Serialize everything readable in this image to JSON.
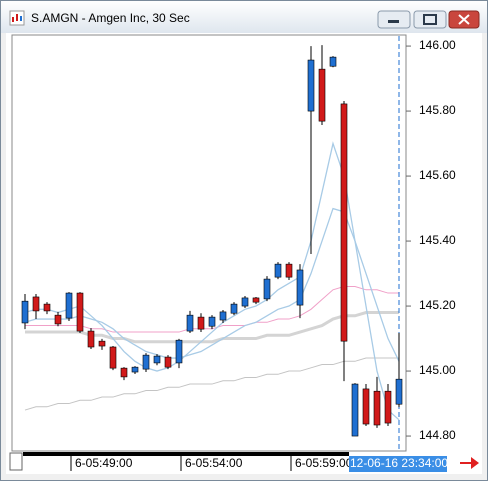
{
  "window": {
    "title": "S.AMGN - Amgen Inc, 30 Sec"
  },
  "chart_data": {
    "type": "candlestick",
    "categories": [
      null,
      null,
      null,
      null,
      "6-05:49:00",
      null,
      null,
      null,
      null,
      null,
      null,
      null,
      null,
      null,
      "6-05:54:00",
      null,
      null,
      null,
      null,
      null,
      null,
      null,
      null,
      null,
      "6-05:59:00",
      null,
      null,
      null,
      null,
      null,
      null,
      null,
      null,
      null,
      null
    ],
    "open": [
      145.148,
      145.228,
      145.206,
      145.172,
      145.163,
      145.24,
      145.123,
      145.092,
      145.074,
      145.009,
      144.997,
      145.006,
      145.025,
      145.043,
      145.025,
      145.123,
      145.166,
      145.138,
      145.157,
      145.178,
      145.2,
      145.225,
      145.222,
      145.289,
      145.329,
      145.203,
      145.8,
      145.929,
      145.938,
      145.822,
      144.8,
      144.945,
      144.938,
      144.938,
      144.898
    ],
    "high": [
      145.237,
      145.237,
      145.212,
      145.182,
      145.243,
      145.243,
      145.132,
      145.099,
      145.077,
      145.012,
      145.015,
      145.055,
      145.052,
      145.049,
      145.099,
      145.185,
      145.178,
      145.172,
      145.188,
      145.212,
      145.231,
      145.228,
      145.292,
      145.335,
      145.335,
      145.329,
      146.0,
      146.003,
      145.969,
      145.831,
      144.963,
      144.96,
      144.982,
      144.96,
      145.117
    ],
    "low": [
      145.129,
      145.16,
      145.175,
      145.138,
      145.154,
      145.117,
      145.068,
      145.065,
      145.003,
      144.972,
      144.991,
      144.997,
      145.018,
      145.006,
      145.009,
      145.117,
      145.12,
      145.129,
      145.148,
      145.172,
      145.194,
      145.206,
      145.215,
      145.283,
      145.28,
      145.163,
      145.36,
      145.757,
      145.935,
      144.969,
      144.8,
      144.831,
      144.825,
      144.831,
      144.889
    ],
    "close": [
      145.215,
      145.185,
      145.185,
      145.145,
      145.24,
      145.123,
      145.074,
      145.077,
      145.009,
      144.982,
      145.012,
      145.049,
      145.046,
      145.012,
      145.095,
      145.172,
      145.129,
      145.166,
      145.182,
      145.206,
      145.225,
      145.212,
      145.283,
      145.329,
      145.289,
      145.311,
      145.957,
      145.769,
      145.966,
      145.092,
      144.96,
      144.837,
      144.834,
      144.84,
      144.975
    ],
    "up_color": "#1f6fd1",
    "down_color": "#d11a1a",
    "overlays": [
      {
        "color": "#d4d4d4",
        "values": [
          145.12,
          145.12,
          145.12,
          145.12,
          145.12,
          145.12,
          145.11,
          145.11,
          145.1,
          145.1,
          145.09,
          145.09,
          145.09,
          145.09,
          145.09,
          145.09,
          145.09,
          145.09,
          145.1,
          145.1,
          145.1,
          145.1,
          145.11,
          145.11,
          145.11,
          145.12,
          145.13,
          145.14,
          145.16,
          145.17,
          145.17,
          145.18,
          145.18,
          145.18,
          145.18
        ]
      },
      {
        "color": "#c4c4c4",
        "values": [
          144.88,
          144.89,
          144.89,
          144.9,
          144.9,
          144.91,
          144.91,
          144.92,
          144.92,
          144.93,
          144.93,
          144.94,
          144.94,
          144.95,
          144.95,
          144.96,
          144.96,
          144.96,
          144.97,
          144.97,
          144.98,
          144.98,
          144.99,
          144.99,
          145.0,
          145.0,
          145.01,
          145.02,
          145.02,
          145.03,
          145.03,
          145.04,
          145.04,
          145.04,
          145.04
        ]
      },
      {
        "color": "#f0a0c8",
        "values": [
          145.14,
          145.14,
          145.14,
          145.14,
          145.14,
          145.14,
          145.13,
          145.13,
          145.12,
          145.12,
          145.12,
          145.12,
          145.12,
          145.12,
          145.12,
          145.13,
          145.13,
          145.13,
          145.14,
          145.14,
          145.14,
          145.15,
          145.15,
          145.16,
          145.16,
          145.17,
          145.19,
          145.22,
          145.25,
          145.26,
          145.26,
          145.25,
          145.25,
          145.24,
          145.24
        ]
      },
      {
        "color": "#a8cbe6",
        "values": [
          145.15,
          145.16,
          145.16,
          145.16,
          145.16,
          145.17,
          145.16,
          145.15,
          145.13,
          145.1,
          145.08,
          145.06,
          145.05,
          145.04,
          145.04,
          145.05,
          145.06,
          145.08,
          145.1,
          145.12,
          145.14,
          145.15,
          145.17,
          145.19,
          145.2,
          145.22,
          145.3,
          145.4,
          145.5,
          145.49,
          145.4,
          145.3,
          145.2,
          145.1,
          145.03
        ]
      },
      {
        "color": "#a8cbe6",
        "values": [
          145.18,
          145.19,
          145.19,
          145.18,
          145.19,
          145.2,
          145.17,
          145.14,
          145.1,
          145.06,
          145.03,
          145.01,
          145.0,
          145.01,
          145.03,
          145.06,
          145.09,
          145.12,
          145.15,
          145.17,
          145.19,
          145.2,
          145.22,
          145.25,
          145.27,
          145.29,
          145.4,
          145.55,
          145.7,
          145.6,
          145.4,
          145.2,
          145.0,
          144.88,
          144.85
        ]
      }
    ],
    "ylim": [
      144.754,
      146.031
    ],
    "yticks": [
      {
        "value": 146,
        "label": "146.00"
      },
      {
        "value": 145.8,
        "label": "145.80"
      },
      {
        "value": 145.6,
        "label": "145.60"
      },
      {
        "value": 145.4,
        "label": "145.40"
      },
      {
        "value": 145.2,
        "label": "145.20"
      },
      {
        "value": 145,
        "label": "145.00"
      },
      {
        "value": 144.8,
        "label": "144.80"
      }
    ],
    "cursor_label": "12-06-16 23:34:00"
  }
}
